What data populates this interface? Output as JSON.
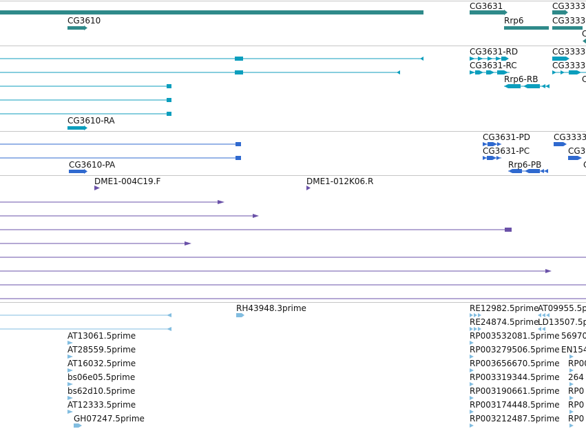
{
  "colors": {
    "gene": "#2f8a8a",
    "transcript": "#0c9ebd",
    "protein": "#2f69cf",
    "alignment": "#6a51a8",
    "est": "#82bde0",
    "separator": "#c6c6c6",
    "background": "#ffffff"
  },
  "tracks": {
    "genes": {
      "labels": [
        "CG3631",
        "CG3333",
        "CG3610",
        "Rrp6",
        "CG3333",
        "C"
      ]
    },
    "transcripts": {
      "labels": [
        "CG3631-RD",
        "CG3333",
        "CG3631-RC",
        "CG3333",
        "Rrp6-RB",
        "C",
        "CG3610-RA"
      ]
    },
    "proteins": {
      "labels": [
        "CG3631-PD",
        "CG3333",
        "CG3631-PC",
        "CG3",
        "CG3610-PA",
        "Rrp6-PB",
        "C"
      ]
    },
    "alignments": {
      "labels": [
        "DME1-004C19.F",
        "DME1-012K06.R"
      ]
    },
    "ests": {
      "labels": [
        "RH43948.3prime",
        "RE12982.5prime",
        "AT09955.5p",
        "RE24874.5prime",
        "LD13507.5p",
        "AT13061.5prime",
        "RP003532081.5prime",
        "56970",
        "AT28559.5prime",
        "RP003279506.5prime",
        "EN154",
        "AT16032.5prime",
        "RP003656670.5prime",
        "RP00",
        "bs06e05.5prime",
        "RP003319344.5prime",
        "264",
        "bs62d10.5prime",
        "RP003190661.5prime",
        "RP0",
        "AT12333.5prime",
        "RP003174448.5prime",
        "RP0",
        "GH07247.5prime",
        "RP003212487.5prime",
        "RP0"
      ]
    }
  }
}
